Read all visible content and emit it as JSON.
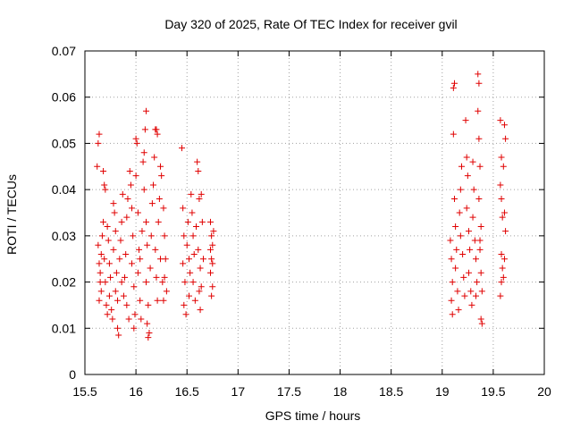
{
  "chart_data": {
    "type": "scatter",
    "title": "Day 320 of 2025, Rate Of TEC Index for receiver gvil",
    "xlabel": "GPS time / hours",
    "ylabel": "ROTI / TECUs",
    "xlim": [
      15.5,
      20
    ],
    "ylim": [
      0,
      0.07
    ],
    "xticks": [
      "15.5",
      "16",
      "16.5",
      "17",
      "17.5",
      "18",
      "18.5",
      "19",
      "19.5",
      "20"
    ],
    "yticks": [
      "0",
      "0.01",
      "0.02",
      "0.03",
      "0.04",
      "0.05",
      "0.06",
      "0.07"
    ],
    "grid": true,
    "marker": "+",
    "series": [
      {
        "name": "ROTI",
        "color": "#e00000",
        "points": [
          [
            15.62,
            0.045
          ],
          [
            15.63,
            0.05
          ],
          [
            15.64,
            0.052
          ],
          [
            15.63,
            0.028
          ],
          [
            15.64,
            0.024
          ],
          [
            15.65,
            0.02
          ],
          [
            15.66,
            0.018
          ],
          [
            15.64,
            0.016
          ],
          [
            15.65,
            0.022
          ],
          [
            15.66,
            0.026
          ],
          [
            15.67,
            0.03
          ],
          [
            15.68,
            0.044
          ],
          [
            15.69,
            0.041
          ],
          [
            15.68,
            0.033
          ],
          [
            15.69,
            0.025
          ],
          [
            15.7,
            0.02
          ],
          [
            15.71,
            0.015
          ],
          [
            15.72,
            0.013
          ],
          [
            15.7,
            0.04
          ],
          [
            15.72,
            0.032
          ],
          [
            15.73,
            0.029
          ],
          [
            15.74,
            0.024
          ],
          [
            15.75,
            0.021
          ],
          [
            15.74,
            0.017
          ],
          [
            15.76,
            0.014
          ],
          [
            15.77,
            0.012
          ],
          [
            15.78,
            0.027
          ],
          [
            15.79,
            0.035
          ],
          [
            15.78,
            0.037
          ],
          [
            15.8,
            0.031
          ],
          [
            15.81,
            0.022
          ],
          [
            15.8,
            0.018
          ],
          [
            15.82,
            0.016
          ],
          [
            15.82,
            0.01
          ],
          [
            15.83,
            0.0085
          ],
          [
            15.84,
            0.025
          ],
          [
            15.85,
            0.029
          ],
          [
            15.86,
            0.033
          ],
          [
            15.87,
            0.039
          ],
          [
            15.86,
            0.02
          ],
          [
            15.88,
            0.017
          ],
          [
            15.89,
            0.021
          ],
          [
            15.9,
            0.026
          ],
          [
            15.91,
            0.034
          ],
          [
            15.92,
            0.038
          ],
          [
            15.91,
            0.015
          ],
          [
            15.93,
            0.012
          ],
          [
            15.94,
            0.044
          ],
          [
            15.95,
            0.041
          ],
          [
            15.96,
            0.036
          ],
          [
            15.97,
            0.03
          ],
          [
            15.96,
            0.024
          ],
          [
            15.98,
            0.019
          ],
          [
            15.99,
            0.013
          ],
          [
            15.98,
            0.01
          ],
          [
            16.0,
            0.051
          ],
          [
            16.01,
            0.05
          ],
          [
            16.0,
            0.043
          ],
          [
            16.02,
            0.035
          ],
          [
            16.03,
            0.027
          ],
          [
            16.02,
            0.022
          ],
          [
            16.04,
            0.016
          ],
          [
            16.05,
            0.012
          ],
          [
            16.04,
            0.025
          ],
          [
            16.06,
            0.031
          ],
          [
            16.07,
            0.046
          ],
          [
            16.08,
            0.048
          ],
          [
            16.09,
            0.053
          ],
          [
            16.1,
            0.057
          ],
          [
            16.08,
            0.04
          ],
          [
            16.1,
            0.033
          ],
          [
            16.11,
            0.028
          ],
          [
            16.1,
            0.02
          ],
          [
            16.11,
            0.011
          ],
          [
            16.12,
            0.008
          ],
          [
            16.13,
            0.009
          ],
          [
            16.12,
            0.015
          ],
          [
            16.14,
            0.023
          ],
          [
            16.15,
            0.03
          ],
          [
            16.16,
            0.037
          ],
          [
            16.17,
            0.041
          ],
          [
            16.18,
            0.047
          ],
          [
            16.19,
            0.053
          ],
          [
            16.2,
            0.053
          ],
          [
            16.21,
            0.052
          ],
          [
            16.19,
            0.027
          ],
          [
            16.2,
            0.021
          ],
          [
            16.21,
            0.016
          ],
          [
            16.22,
            0.033
          ],
          [
            16.23,
            0.038
          ],
          [
            16.24,
            0.045
          ],
          [
            16.25,
            0.043
          ],
          [
            16.24,
            0.025
          ],
          [
            16.26,
            0.02
          ],
          [
            16.27,
            0.016
          ],
          [
            16.28,
            0.03
          ],
          [
            16.29,
            0.025
          ],
          [
            16.28,
            0.021
          ],
          [
            16.3,
            0.018
          ],
          [
            16.27,
            0.036
          ],
          [
            16.45,
            0.049
          ],
          [
            16.46,
            0.036
          ],
          [
            16.47,
            0.03
          ],
          [
            16.46,
            0.024
          ],
          [
            16.48,
            0.02
          ],
          [
            16.47,
            0.015
          ],
          [
            16.49,
            0.013
          ],
          [
            16.5,
            0.028
          ],
          [
            16.51,
            0.033
          ],
          [
            16.52,
            0.025
          ],
          [
            16.53,
            0.022
          ],
          [
            16.52,
            0.017
          ],
          [
            16.54,
            0.039
          ],
          [
            16.55,
            0.035
          ],
          [
            16.56,
            0.03
          ],
          [
            16.57,
            0.026
          ],
          [
            16.56,
            0.02
          ],
          [
            16.58,
            0.016
          ],
          [
            16.59,
            0.032
          ],
          [
            16.6,
            0.046
          ],
          [
            16.61,
            0.044
          ],
          [
            16.62,
            0.038
          ],
          [
            16.61,
            0.027
          ],
          [
            16.63,
            0.023
          ],
          [
            16.64,
            0.019
          ],
          [
            16.63,
            0.014
          ],
          [
            16.65,
            0.033
          ],
          [
            16.64,
            0.039
          ],
          [
            16.66,
            0.025
          ],
          [
            16.62,
            0.018
          ],
          [
            16.73,
            0.033
          ],
          [
            16.74,
            0.03
          ],
          [
            16.75,
            0.028
          ],
          [
            16.74,
            0.025
          ],
          [
            16.73,
            0.022
          ],
          [
            16.75,
            0.019
          ],
          [
            16.74,
            0.017
          ],
          [
            16.76,
            0.031
          ],
          [
            16.75,
            0.024
          ],
          [
            16.73,
            0.027
          ],
          [
            19.08,
            0.029
          ],
          [
            19.09,
            0.025
          ],
          [
            19.1,
            0.02
          ],
          [
            19.09,
            0.016
          ],
          [
            19.1,
            0.013
          ],
          [
            19.11,
            0.062
          ],
          [
            19.12,
            0.063
          ],
          [
            19.11,
            0.052
          ],
          [
            19.12,
            0.038
          ],
          [
            19.13,
            0.032
          ],
          [
            19.14,
            0.027
          ],
          [
            19.13,
            0.023
          ],
          [
            19.15,
            0.018
          ],
          [
            19.16,
            0.014
          ],
          [
            19.17,
            0.035
          ],
          [
            19.18,
            0.04
          ],
          [
            19.19,
            0.045
          ],
          [
            19.18,
            0.03
          ],
          [
            19.2,
            0.026
          ],
          [
            19.21,
            0.021
          ],
          [
            19.22,
            0.017
          ],
          [
            19.23,
            0.055
          ],
          [
            19.24,
            0.047
          ],
          [
            19.25,
            0.043
          ],
          [
            19.24,
            0.036
          ],
          [
            19.26,
            0.031
          ],
          [
            19.27,
            0.027
          ],
          [
            19.26,
            0.022
          ],
          [
            19.28,
            0.018
          ],
          [
            19.29,
            0.015
          ],
          [
            19.3,
            0.046
          ],
          [
            19.31,
            0.04
          ],
          [
            19.3,
            0.034
          ],
          [
            19.32,
            0.029
          ],
          [
            19.33,
            0.025
          ],
          [
            19.34,
            0.02
          ],
          [
            19.33,
            0.017
          ],
          [
            19.35,
            0.065
          ],
          [
            19.36,
            0.063
          ],
          [
            19.35,
            0.057
          ],
          [
            19.36,
            0.051
          ],
          [
            19.37,
            0.045
          ],
          [
            19.36,
            0.038
          ],
          [
            19.38,
            0.032
          ],
          [
            19.37,
            0.027
          ],
          [
            19.38,
            0.022
          ],
          [
            19.39,
            0.018
          ],
          [
            19.38,
            0.012
          ],
          [
            19.39,
            0.011
          ],
          [
            19.37,
            0.029
          ],
          [
            19.57,
            0.055
          ],
          [
            19.58,
            0.047
          ],
          [
            19.57,
            0.041
          ],
          [
            19.58,
            0.038
          ],
          [
            19.59,
            0.034
          ],
          [
            19.58,
            0.026
          ],
          [
            19.59,
            0.023
          ],
          [
            19.58,
            0.02
          ],
          [
            19.57,
            0.017
          ],
          [
            19.6,
            0.045
          ],
          [
            19.61,
            0.054
          ],
          [
            19.62,
            0.051
          ],
          [
            19.61,
            0.035
          ],
          [
            19.62,
            0.031
          ],
          [
            19.61,
            0.025
          ],
          [
            19.6,
            0.021
          ]
        ]
      }
    ]
  }
}
